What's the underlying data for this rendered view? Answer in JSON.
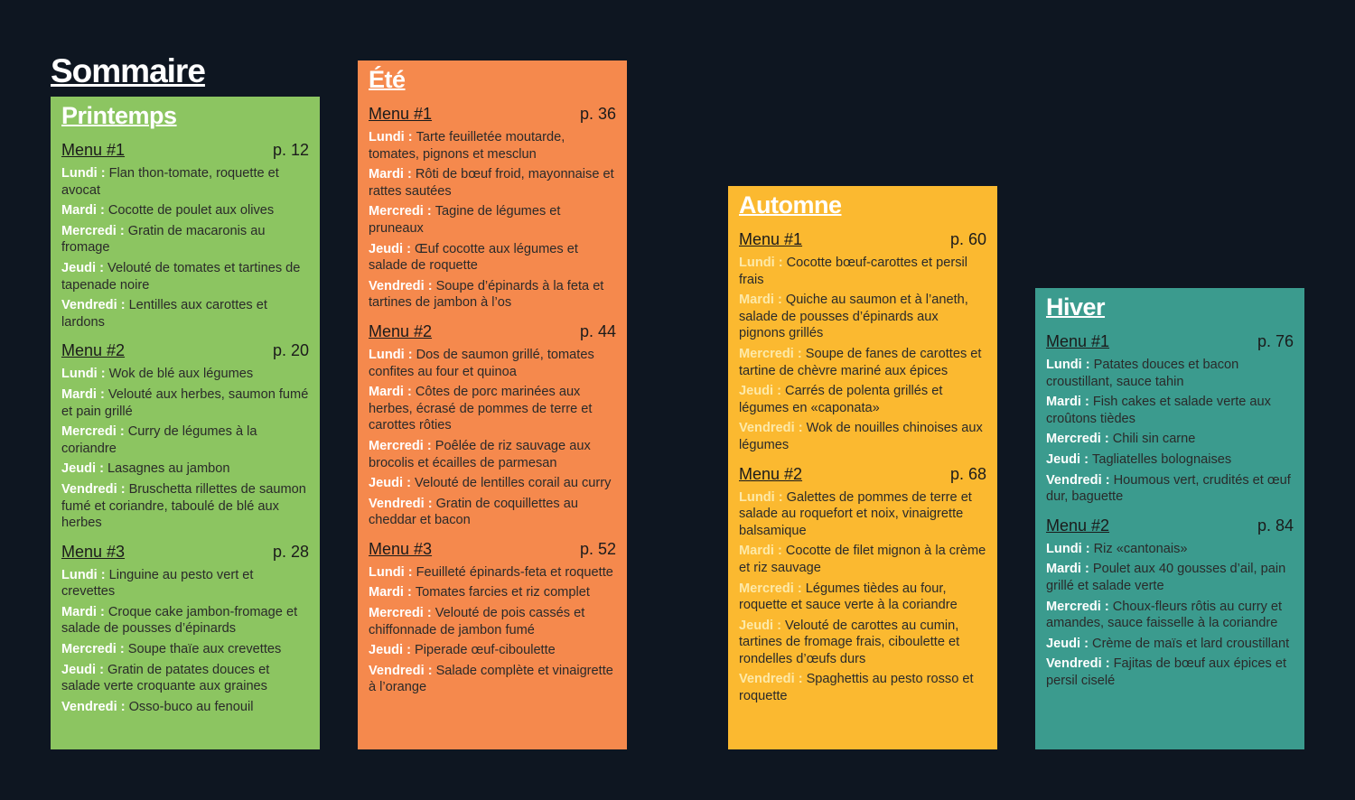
{
  "title": "Sommaire",
  "seasons": [
    {
      "name": "Printemps",
      "menus": [
        {
          "label": "Menu #1",
          "page": "p. 12",
          "days": [
            {
              "day": "Lundi :",
              "text": "Flan thon-tomate, roquette et avocat"
            },
            {
              "day": "Mardi :",
              "text": "Cocotte de poulet aux olives"
            },
            {
              "day": "Mercredi :",
              "text": "Gratin de macaronis au fromage"
            },
            {
              "day": "Jeudi :",
              "text": "Velouté de tomates et tartines de tapenade noire"
            },
            {
              "day": "Vendredi :",
              "text": "Lentilles aux carottes et lardons"
            }
          ]
        },
        {
          "label": "Menu #2",
          "page": "p. 20",
          "days": [
            {
              "day": "Lundi :",
              "text": "Wok de blé aux légumes"
            },
            {
              "day": "Mardi :",
              "text": "Velouté aux herbes, saumon fumé et pain grillé"
            },
            {
              "day": "Mercredi :",
              "text": "Curry de légumes à la coriandre"
            },
            {
              "day": "Jeudi :",
              "text": "Lasagnes au jambon"
            },
            {
              "day": "Vendredi :",
              "text": "Bruschetta rillettes de saumon fumé et coriandre, taboulé de blé aux herbes"
            }
          ]
        },
        {
          "label": "Menu #3",
          "page": "p. 28",
          "days": [
            {
              "day": "Lundi :",
              "text": "Linguine au pesto vert et crevettes"
            },
            {
              "day": "Mardi :",
              "text": "Croque cake jambon-fromage et salade de pousses d’épinards"
            },
            {
              "day": "Mercredi :",
              "text": "Soupe thaïe aux crevettes"
            },
            {
              "day": "Jeudi :",
              "text": "Gratin de patates douces et salade verte croquante aux graines"
            },
            {
              "day": "Vendredi :",
              "text": "Osso-buco au fenouil"
            }
          ]
        }
      ]
    },
    {
      "name": "Été",
      "menus": [
        {
          "label": "Menu #1",
          "page": "p. 36",
          "days": [
            {
              "day": "Lundi :",
              "text": "Tarte feuilletée moutarde, tomates, pignons et mesclun"
            },
            {
              "day": "Mardi :",
              "text": "Rôti de bœuf froid, mayonnaise et rattes sautées"
            },
            {
              "day": "Mercredi :",
              "text": "Tagine de légumes et pruneaux"
            },
            {
              "day": "Jeudi :",
              "text": "Œuf cocotte aux légumes et salade de roquette"
            },
            {
              "day": "Vendredi :",
              "text": "Soupe d’épinards à la feta et tartines de jambon à l’os"
            }
          ]
        },
        {
          "label": "Menu #2",
          "page": "p. 44",
          "days": [
            {
              "day": "Lundi :",
              "text": "Dos de saumon grillé, tomates confites au four et quinoa"
            },
            {
              "day": "Mardi :",
              "text": "Côtes de porc marinées aux herbes, écrasé de pommes de terre et carottes rôties"
            },
            {
              "day": "Mercredi :",
              "text": "Poêlée de riz sauvage aux brocolis et écailles de parmesan"
            },
            {
              "day": "Jeudi :",
              "text": "Velouté de lentilles corail au curry"
            },
            {
              "day": "Vendredi :",
              "text": "Gratin de coquillettes au cheddar et bacon"
            }
          ]
        },
        {
          "label": "Menu #3",
          "page": "p. 52",
          "days": [
            {
              "day": "Lundi :",
              "text": "Feuilleté épinards-feta et roquette"
            },
            {
              "day": "Mardi :",
              "text": "Tomates farcies et riz complet"
            },
            {
              "day": "Mercredi :",
              "text": "Velouté de pois cassés et chiffonnade de jambon fumé"
            },
            {
              "day": "Jeudi :",
              "text": "Piperade œuf-ciboulette"
            },
            {
              "day": "Vendredi :",
              "text": "Salade complète et vinaigrette à l’orange"
            }
          ]
        }
      ]
    },
    {
      "name": "Automne",
      "menus": [
        {
          "label": "Menu #1",
          "page": "p. 60",
          "days": [
            {
              "day": "Lundi :",
              "text": "Cocotte bœuf-carottes et persil frais"
            },
            {
              "day": "Mardi :",
              "text": "Quiche au saumon et à l’aneth, salade de pousses d’épinards aux pignons grillés"
            },
            {
              "day": "Mercredi :",
              "text": "Soupe de fanes de carottes et tartine de chèvre mariné aux épices"
            },
            {
              "day": "Jeudi :",
              "text": "Carrés de polenta grillés et légumes en «caponata»"
            },
            {
              "day": "Vendredi :",
              "text": "Wok de nouilles chinoises aux légumes"
            }
          ]
        },
        {
          "label": "Menu #2",
          "page": "p. 68",
          "days": [
            {
              "day": "Lundi :",
              "text": "Galettes de pommes de terre et salade au roquefort et noix, vinaigrette balsamique"
            },
            {
              "day": "Mardi :",
              "text": "Cocotte de filet mignon à la crème et riz sauvage"
            },
            {
              "day": "Mercredi :",
              "text": "Légumes tièdes au four, roquette et sauce verte à la coriandre"
            },
            {
              "day": "Jeudi :",
              "text": "Velouté de carottes au cumin, tartines de fromage frais, ciboulette et rondelles d’œufs durs"
            },
            {
              "day": "Vendredi :",
              "text": "Spaghettis au pesto rosso et roquette"
            }
          ]
        }
      ]
    },
    {
      "name": "Hiver",
      "menus": [
        {
          "label": "Menu #1",
          "page": "p. 76",
          "days": [
            {
              "day": "Lundi :",
              "text": "Patates douces et bacon croustillant, sauce tahin"
            },
            {
              "day": "Mardi :",
              "text": "Fish cakes et salade verte aux croûtons tièdes"
            },
            {
              "day": "Mercredi :",
              "text": "Chili sin carne"
            },
            {
              "day": "Jeudi :",
              "text": "Tagliatelles bolognaises"
            },
            {
              "day": "Vendredi :",
              "text": "Houmous vert, crudités et œuf dur, baguette"
            }
          ]
        },
        {
          "label": "Menu #2",
          "page": "p. 84",
          "days": [
            {
              "day": "Lundi :",
              "text": "Riz «cantonais»"
            },
            {
              "day": "Mardi :",
              "text": "Poulet aux 40 gousses d’ail, pain grillé et salade verte"
            },
            {
              "day": "Mercredi :",
              "text": "Choux-fleurs rôtis au curry et amandes, sauce faisselle à la coriandre"
            },
            {
              "day": "Jeudi :",
              "text": "Crème de maïs et lard croustillant"
            },
            {
              "day": "Vendredi :",
              "text": "Fajitas de bœuf aux épices et persil ciselé"
            }
          ]
        }
      ]
    }
  ]
}
